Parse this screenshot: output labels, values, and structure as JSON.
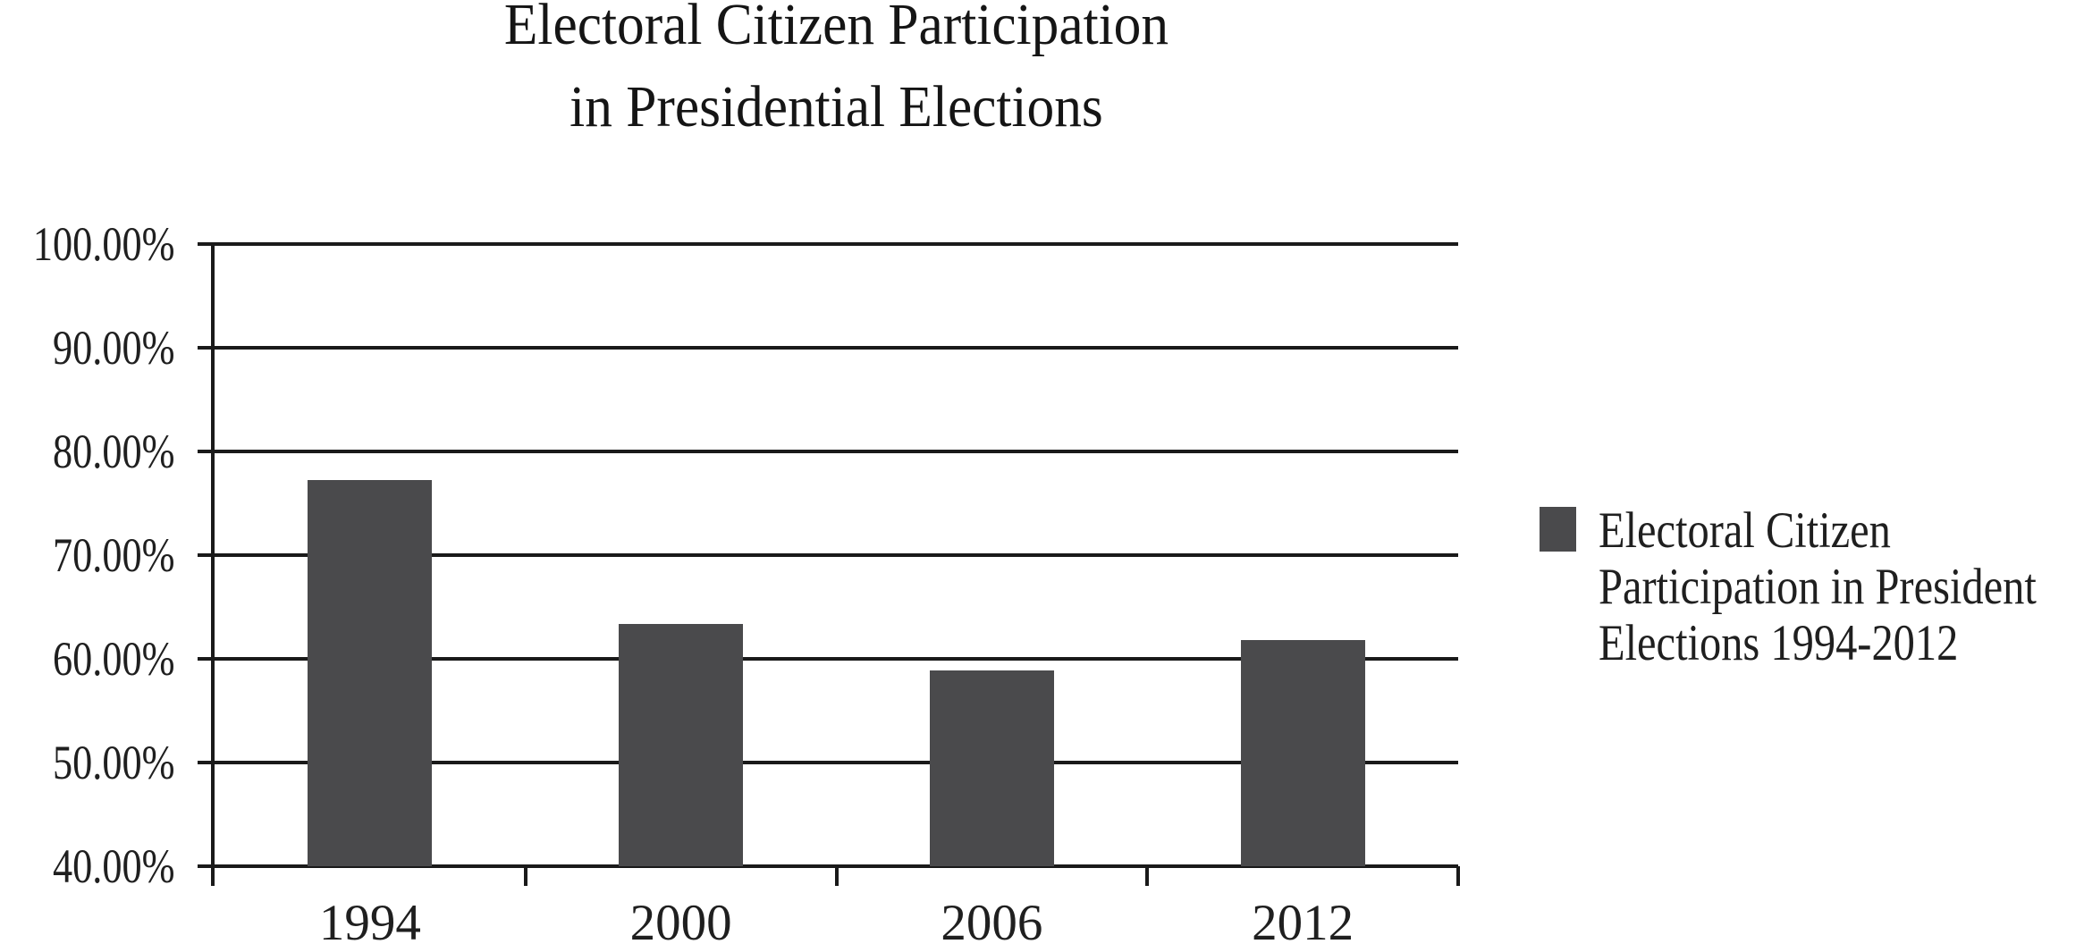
{
  "title": {
    "line1": "Electoral Citizen Participation",
    "line2": "in Presidential Elections"
  },
  "legend": {
    "swatch_color": "#4a4a4c",
    "lines": [
      "Electoral Citizen",
      "Participation in President",
      "Elections 1994-2012"
    ]
  },
  "chart_data": {
    "type": "bar",
    "title": "Electoral Citizen Participation in Presidential Elections",
    "categories": [
      "1994",
      "2000",
      "2006",
      "2012"
    ],
    "series": [
      {
        "name": "Electoral Citizen Participation in President Elections 1994-2012",
        "values": [
          77.2,
          63.4,
          58.9,
          61.8
        ]
      }
    ],
    "unit": "%",
    "xlabel": "",
    "ylabel": "",
    "ylim": [
      40,
      100
    ],
    "y_ticks": [
      {
        "value": 100,
        "label": "100.00%"
      },
      {
        "value": 90,
        "label": "90.00%"
      },
      {
        "value": 80,
        "label": "80.00%"
      },
      {
        "value": 70,
        "label": "70.00%"
      },
      {
        "value": 60,
        "label": "60.00%"
      },
      {
        "value": 50,
        "label": "50.00%"
      },
      {
        "value": 40,
        "label": "40.00%"
      }
    ],
    "grid": true,
    "legend_position": "right",
    "bar_color": "#4a4a4c",
    "axis_color": "#1a1a1a",
    "background_color": "#ffffff"
  }
}
